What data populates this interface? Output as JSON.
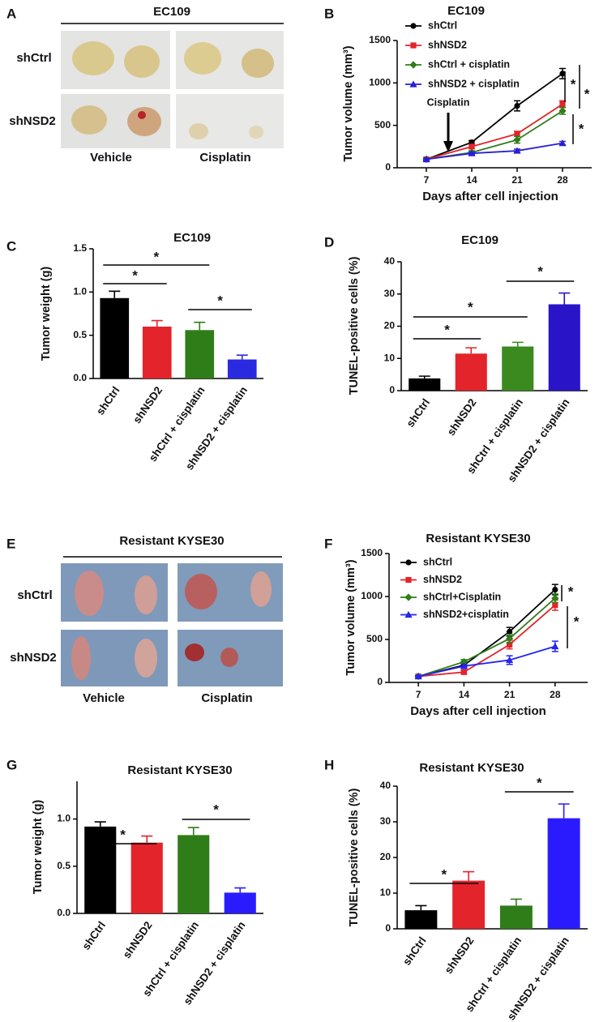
{
  "photo_panels": [
    {
      "panel": "A",
      "title": "EC109",
      "row_labels": [
        "shCtrl",
        "shNSD2"
      ],
      "column_labels": [
        "Vehicle",
        "Cisplatin"
      ]
    },
    {
      "panel": "E",
      "title": "Resistant KYSE30",
      "row_labels": [
        "shCtrl",
        "shNSD2"
      ],
      "column_labels": [
        "Vehicle",
        "Cisplatin"
      ]
    }
  ],
  "chart_data": [
    {
      "panel": "B",
      "type": "line",
      "title": "EC109",
      "xlabel": "Days after cell injection",
      "ylabel": "Tumor volume (mm³)",
      "x": [
        7,
        14,
        21,
        28
      ],
      "xlim": [
        2.5,
        32.5
      ],
      "xticks": [
        7,
        14,
        21,
        28
      ],
      "ylim": [
        0,
        1500
      ],
      "yticks": [
        0,
        500,
        1000,
        1500
      ],
      "annotation": "Cisplatin",
      "series": [
        {
          "name": "shCtrl",
          "color": "#000000",
          "marker": "circle",
          "values": [
            100,
            300,
            730,
            1110
          ],
          "errors": [
            15,
            20,
            60,
            60
          ]
        },
        {
          "name": "shNSD2",
          "color": "#e3242b",
          "marker": "square",
          "values": [
            100,
            250,
            400,
            750
          ],
          "errors": [
            10,
            25,
            30,
            40
          ]
        },
        {
          "name": "shCtrl + cisplatin",
          "color": "#2f7d19",
          "marker": "diamond",
          "values": [
            100,
            180,
            330,
            670
          ],
          "errors": [
            10,
            20,
            40,
            40
          ]
        },
        {
          "name": "shNSD2 + cisplatin",
          "color": "#2a1fd6",
          "marker": "triangle",
          "values": [
            100,
            170,
            200,
            290
          ],
          "errors": [
            10,
            15,
            20,
            20
          ]
        }
      ],
      "significance": [
        "*",
        "*",
        "*"
      ]
    },
    {
      "panel": "C",
      "type": "bar",
      "title": "EC109",
      "ylabel": "Tumor weight (g)",
      "categories": [
        "shCtrl",
        "shNSD2",
        "shCtrl + cisplatin",
        "shNSD2 + cisplatin"
      ],
      "values": [
        0.93,
        0.6,
        0.56,
        0.22
      ],
      "errors": [
        0.08,
        0.07,
        0.09,
        0.05
      ],
      "colors": [
        "#000000",
        "#e3242b",
        "#2f7d19",
        "#2a2ae0"
      ],
      "ylim": [
        0,
        1.5
      ],
      "yticks": [
        {
          "value": 0,
          "label": "0.0"
        },
        0.5,
        {
          "value": 1,
          "label": "1.0"
        },
        1.5
      ],
      "significance": [
        "*",
        "*",
        "*"
      ]
    },
    {
      "panel": "D",
      "type": "bar",
      "title": "EC109",
      "ylabel": "TUNEL-positive cells (%)",
      "categories": [
        "shCtrl",
        "shNSD2",
        "shCtrl + cisplatin",
        "shNSD2 + cisplatin"
      ],
      "values": [
        3.8,
        11.5,
        13.7,
        26.8
      ],
      "errors": [
        0.7,
        1.8,
        1.3,
        3.5
      ],
      "colors": [
        "#000000",
        "#e3242b",
        "#3a8a1f",
        "#2a14c8"
      ],
      "ylim": [
        0,
        40
      ],
      "yticks": [
        0,
        10,
        20,
        30,
        40
      ],
      "significance": [
        "*",
        "*",
        "*"
      ]
    },
    {
      "panel": "F",
      "type": "line",
      "title": "Resistant KYSE30",
      "xlabel": "Days after cell injection",
      "ylabel": "Tumor volume (mm³)",
      "x": [
        7,
        14,
        21,
        28
      ],
      "xlim": [
        2.5,
        33
      ],
      "xticks": [
        7,
        14,
        21,
        28
      ],
      "ylim": [
        0,
        1500
      ],
      "yticks": [
        0,
        500,
        1000,
        1500
      ],
      "series": [
        {
          "name": "shCtrl",
          "color": "#000000",
          "marker": "circle",
          "values": [
            70,
            200,
            590,
            1080
          ],
          "errors": [
            10,
            20,
            50,
            60
          ]
        },
        {
          "name": "shNSD2",
          "color": "#e3242b",
          "marker": "square",
          "values": [
            70,
            120,
            440,
            900
          ],
          "errors": [
            10,
            20,
            50,
            60
          ]
        },
        {
          "name": "shCtrl+Cisplatin",
          "color": "#2f7d19",
          "marker": "diamond",
          "values": [
            70,
            240,
            510,
            980
          ],
          "errors": [
            10,
            25,
            50,
            50
          ]
        },
        {
          "name": "shNSD2+cisplatin",
          "color": "#2424f0",
          "marker": "triangle",
          "values": [
            70,
            190,
            260,
            420
          ],
          "errors": [
            10,
            20,
            50,
            60
          ]
        }
      ],
      "significance": [
        "*",
        "*"
      ]
    },
    {
      "panel": "G",
      "type": "bar",
      "title": "Resistant KYSE30",
      "ylabel": "Tumor weight (g)",
      "categories": [
        "shCtrl",
        "shNSD2",
        "shCtrl + cisplatin",
        "shNSD2 + cisplatin"
      ],
      "values": [
        0.92,
        0.75,
        0.83,
        0.22
      ],
      "errors": [
        0.05,
        0.07,
        0.08,
        0.05
      ],
      "colors": [
        "#000000",
        "#e3242b",
        "#2f7d19",
        "#2a1bff"
      ],
      "ylim": [
        0,
        1.4
      ],
      "yticks": [
        {
          "value": 0,
          "label": "0.0"
        },
        0.5,
        {
          "value": 1,
          "label": "1.0"
        }
      ],
      "significance": [
        "*",
        "*"
      ]
    },
    {
      "panel": "H",
      "type": "bar",
      "title": "Resistant KYSE30",
      "ylabel": "TUNEL-positive cells (%)",
      "categories": [
        "shCtrl",
        "shNSD2",
        "shCtrl + cisplatin",
        "shNSD2 + cisplatin"
      ],
      "values": [
        5.2,
        13.5,
        6.5,
        31
      ],
      "errors": [
        1.3,
        2.5,
        1.8,
        4
      ],
      "colors": [
        "#000000",
        "#e3242b",
        "#2f7d19",
        "#2a1bff"
      ],
      "ylim": [
        0,
        40
      ],
      "yticks": [
        0,
        10,
        20,
        30,
        40
      ],
      "significance": [
        "*",
        "*"
      ]
    }
  ]
}
